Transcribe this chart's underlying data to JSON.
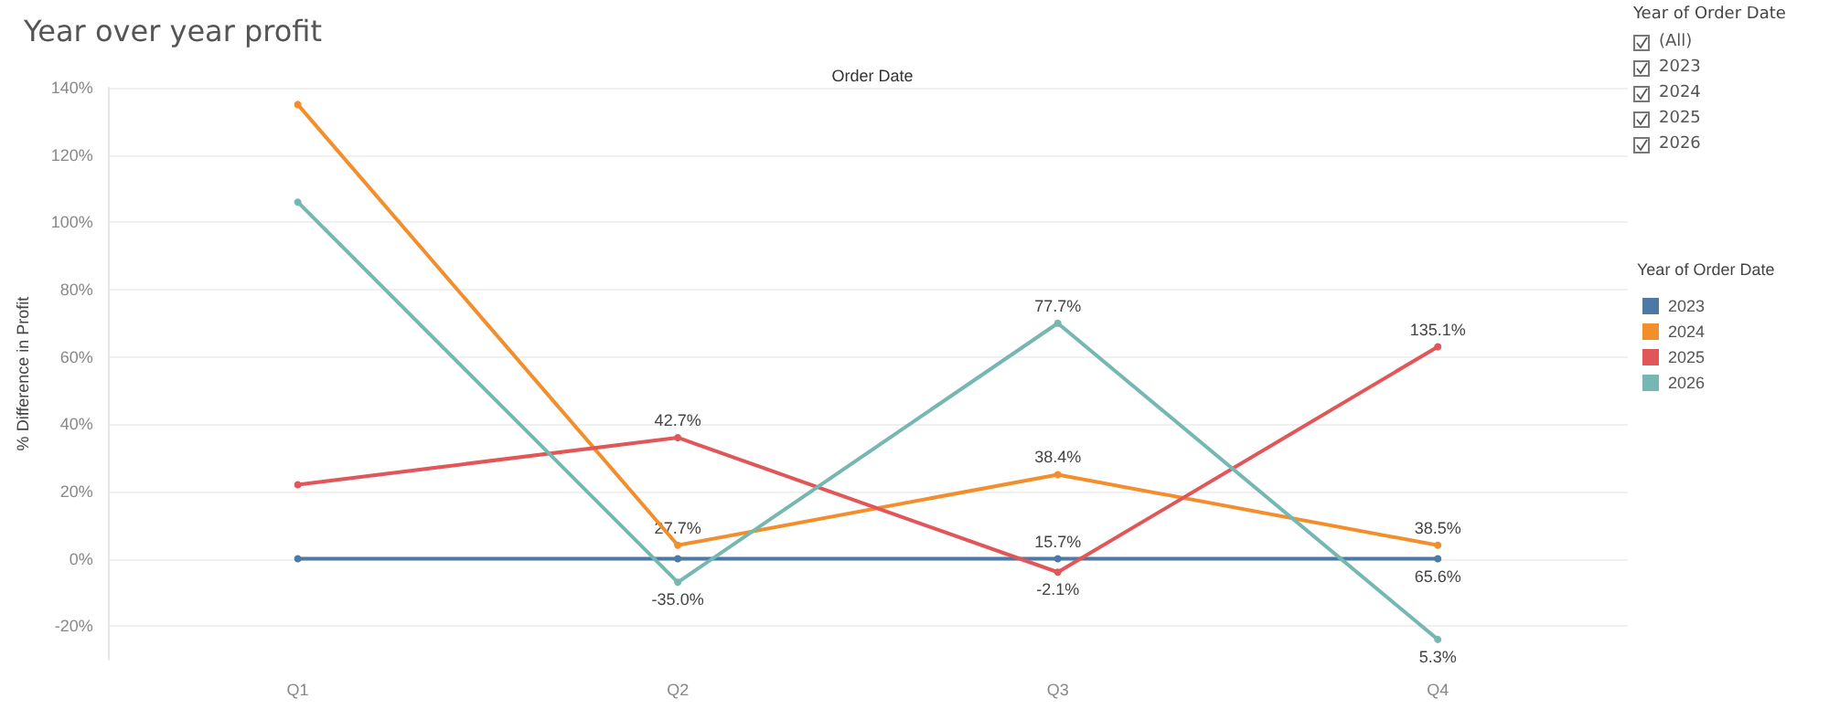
{
  "chart_data": [
    {
      "type": "line",
      "title": "Year over year profit",
      "xlabel": "Order Date",
      "ylabel": "% Difference in Profit",
      "legend_title": "Year of Order Date",
      "categories": [
        "Q1",
        "Q2",
        "Q3",
        "Q4"
      ],
      "series": [
        {
          "name": "2023",
          "color": "#4e79a7",
          "values": [
            0,
            0,
            0,
            0
          ]
        },
        {
          "name": "2024",
          "color": "#f28e2b",
          "values": [
            135,
            4,
            25,
            4
          ]
        },
        {
          "name": "2025",
          "color": "#e15759",
          "values": [
            22,
            36,
            -4,
            63
          ]
        },
        {
          "name": "2026",
          "color": "#76b7b2",
          "values": [
            106,
            -7,
            70,
            -24
          ]
        }
      ],
      "annotations": [
        {
          "text": "15.7%",
          "x": "Q3",
          "y": 0
        },
        {
          "text": "65.6%",
          "x": "Q4",
          "y": 0
        },
        {
          "text": "27.7%",
          "x": "Q2",
          "y": 4
        },
        {
          "text": "38.4%",
          "x": "Q3",
          "y": 25
        },
        {
          "text": "38.5%",
          "x": "Q4",
          "y": 4
        },
        {
          "text": "42.7%",
          "x": "Q2",
          "y": 36
        },
        {
          "text": "-2.1%",
          "x": "Q3",
          "y": -4
        },
        {
          "text": "135.1%",
          "x": "Q4",
          "y": 63
        },
        {
          "text": "-35.0%",
          "x": "Q2",
          "y": -7
        },
        {
          "text": "77.7%",
          "x": "Q3",
          "y": 70
        },
        {
          "text": "5.3%",
          "x": "Q4",
          "y": -24
        },
        "Year of Order Date",
        "(All)",
        "2023",
        "2024",
        "2025",
        "2026"
      ],
      "ylim": [
        -30,
        140
      ],
      "yticks": [
        {
          "value": -20,
          "label": "-20%"
        },
        {
          "value": 0,
          "label": "0%"
        },
        {
          "value": 20,
          "label": "20%"
        },
        {
          "value": 40,
          "label": "40%"
        },
        {
          "value": 60,
          "label": "60%"
        },
        {
          "value": 80,
          "label": "80%"
        },
        {
          "value": 100,
          "label": "100%"
        },
        {
          "value": 120,
          "label": "120%"
        },
        {
          "value": 140,
          "label": "140%"
        }
      ],
      "grid": "y",
      "legend": "right",
      "marker": "circle",
      "line_style": "solid"
    }
  ]
}
